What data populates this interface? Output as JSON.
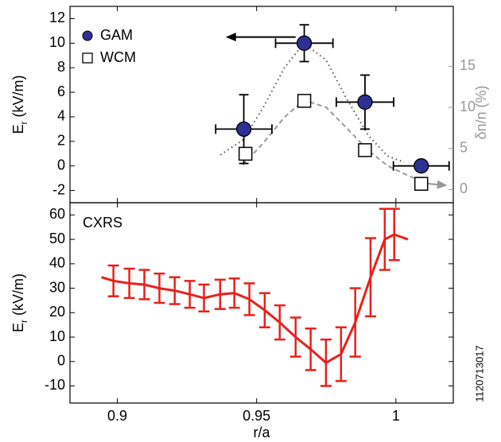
{
  "chart_data": [
    {
      "type": "scatter",
      "ylabel": [
        "E",
        "r",
        " (kV/m)"
      ],
      "y2label": "δn/n (%)",
      "xlim": [
        0.883,
        1.0206
      ],
      "xticks": [
        0.9,
        0.95,
        1
      ],
      "ylim": [
        -3,
        13
      ],
      "yticks": [
        -2,
        0,
        2,
        4,
        6,
        8,
        10,
        12
      ],
      "y2lim": [
        -1.6,
        22.3
      ],
      "y2ticks": [
        0,
        5,
        10,
        15
      ],
      "y2color": "#999999",
      "legend": "upper left",
      "series": [
        {
          "name": "GAM",
          "marker": "circle",
          "color": "#2e3192",
          "x": [
            0.9454,
            0.9671,
            0.9889,
            1.0091
          ],
          "values": [
            3.0,
            10.0,
            5.2,
            0.0
          ],
          "xerr": [
            0.0101,
            0.0103,
            0.0103,
            0.01
          ],
          "yerr": [
            2.8,
            1.5,
            2.2,
            0
          ]
        },
        {
          "name": "WCM",
          "marker": "square",
          "color": "#ffffff",
          "axis": "y2",
          "x": [
            0.946,
            0.9671,
            0.9889,
            1.0091
          ],
          "values": [
            4.36,
            10.8,
            4.8,
            0.7
          ]
        }
      ],
      "curves": [
        {
          "style": "dotted",
          "color": "#555555",
          "x": [
            0.937,
            0.945,
            0.952,
            0.96,
            0.967,
            0.975,
            0.982,
            0.99,
            0.997,
            1.003
          ],
          "values": [
            0.9,
            2.1,
            4.6,
            8.0,
            10.0,
            8.6,
            5.6,
            2.5,
            0.8,
            0.3
          ]
        },
        {
          "style": "dashed",
          "color": "#999999",
          "axis": "y2",
          "x": [
            0.945,
            0.952,
            0.96,
            0.967,
            0.975,
            0.982,
            0.99,
            0.997,
            1.005,
            1.012
          ],
          "values": [
            3.0,
            5.5,
            8.8,
            10.9,
            10.0,
            7.6,
            4.8,
            2.9,
            1.6,
            0.7
          ]
        }
      ],
      "arrows": [
        {
          "color": "#000000",
          "x": [
            0.964,
            0.9389
          ],
          "values": [
            10.5,
            10.5
          ]
        },
        {
          "color": "#999999",
          "axis": "y2",
          "x": [
            1.012,
            1.0185
          ],
          "values": [
            0.7,
            0.5
          ]
        }
      ]
    },
    {
      "type": "line",
      "ylabel": [
        "E",
        "r",
        " (kV/m)"
      ],
      "xlabel": "r/a",
      "xlim": [
        0.883,
        1.0206
      ],
      "xticks": [
        0.9,
        0.95,
        1
      ],
      "ylim": [
        -17,
        65
      ],
      "yticks": [
        -10,
        0,
        10,
        20,
        30,
        40,
        50,
        60
      ],
      "annotation": "1120713017",
      "series": [
        {
          "name": "CXRS",
          "color": "#e8201c",
          "x": [
            0.8943,
            0.8986,
            0.9043,
            0.9097,
            0.9151,
            0.9206,
            0.926,
            0.9311,
            0.9369,
            0.942,
            0.9474,
            0.9529,
            0.9583,
            0.964,
            0.9694,
            0.9749,
            0.9803,
            0.9854,
            0.9909,
            0.996,
            0.9994,
            1.0043
          ],
          "values": [
            34.5,
            33,
            32,
            31.5,
            30,
            29,
            27.5,
            26,
            27.5,
            28,
            25.5,
            21,
            16,
            10,
            5,
            -0.5,
            3,
            16,
            34.5,
            50,
            52,
            50
          ],
          "errors": [
            null,
            6.3,
            6,
            6,
            6,
            5.5,
            5.5,
            5.5,
            6,
            6,
            6.5,
            7,
            7,
            8,
            8.5,
            9.5,
            11,
            14,
            16,
            12.5,
            10.5,
            null
          ]
        }
      ]
    }
  ]
}
